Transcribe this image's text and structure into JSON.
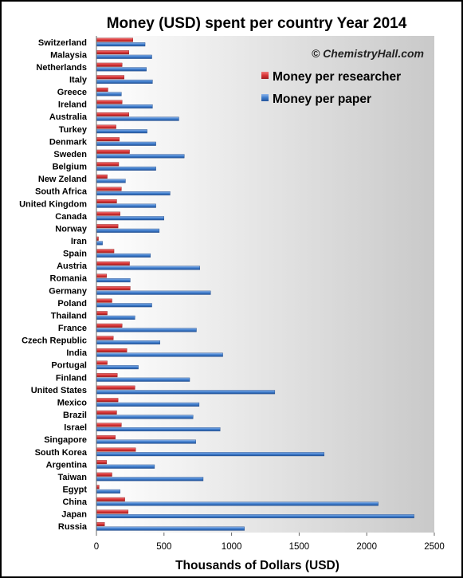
{
  "chart_data": {
    "type": "bar",
    "orientation": "horizontal",
    "title": "Money (USD) spent per country Year 2014",
    "watermark": "© ChemistryHall.com",
    "xlabel": "Thousands of Dollars (USD)",
    "ylabel": "",
    "xlim": [
      0,
      2500
    ],
    "xticks": [
      0,
      500,
      1000,
      1500,
      2000,
      2500
    ],
    "grid": false,
    "legend_position": "top-right",
    "categories": [
      "Switzerland",
      "Malaysia",
      "Netherlands",
      "Italy",
      "Greece",
      "Ireland",
      "Australia",
      "Turkey",
      "Denmark",
      "Sweden",
      "Belgium",
      "New Zeland",
      "South Africa",
      "United Kingdom",
      "Canada",
      "Norway",
      "Iran",
      "Spain",
      "Austria",
      "Romania",
      "Germany",
      "Poland",
      "Thailand",
      "France",
      "Czech Republic",
      "India",
      "Portugal",
      "Finland",
      "United States",
      "Mexico",
      "Brazil",
      "Israel",
      "Singapore",
      "South Korea",
      "Argentina",
      "Taiwan",
      "Egypt",
      "China",
      "Japan",
      "Russia"
    ],
    "series": [
      {
        "name": "Money per researcher",
        "color": "#e0393b",
        "values": [
          270,
          240,
          190,
          205,
          85,
          190,
          240,
          145,
          170,
          245,
          165,
          80,
          185,
          150,
          175,
          160,
          15,
          130,
          245,
          75,
          250,
          115,
          80,
          190,
          125,
          225,
          80,
          155,
          285,
          160,
          150,
          185,
          140,
          290,
          75,
          115,
          20,
          210,
          235,
          60
        ]
      },
      {
        "name": "Money per paper",
        "color": "#3d7ccc",
        "values": [
          360,
          410,
          370,
          415,
          185,
          415,
          610,
          375,
          440,
          650,
          440,
          215,
          545,
          440,
          500,
          465,
          45,
          400,
          765,
          250,
          845,
          410,
          285,
          740,
          470,
          935,
          310,
          690,
          1320,
          760,
          715,
          915,
          735,
          1685,
          430,
          790,
          175,
          2085,
          2350,
          1095
        ]
      }
    ]
  }
}
